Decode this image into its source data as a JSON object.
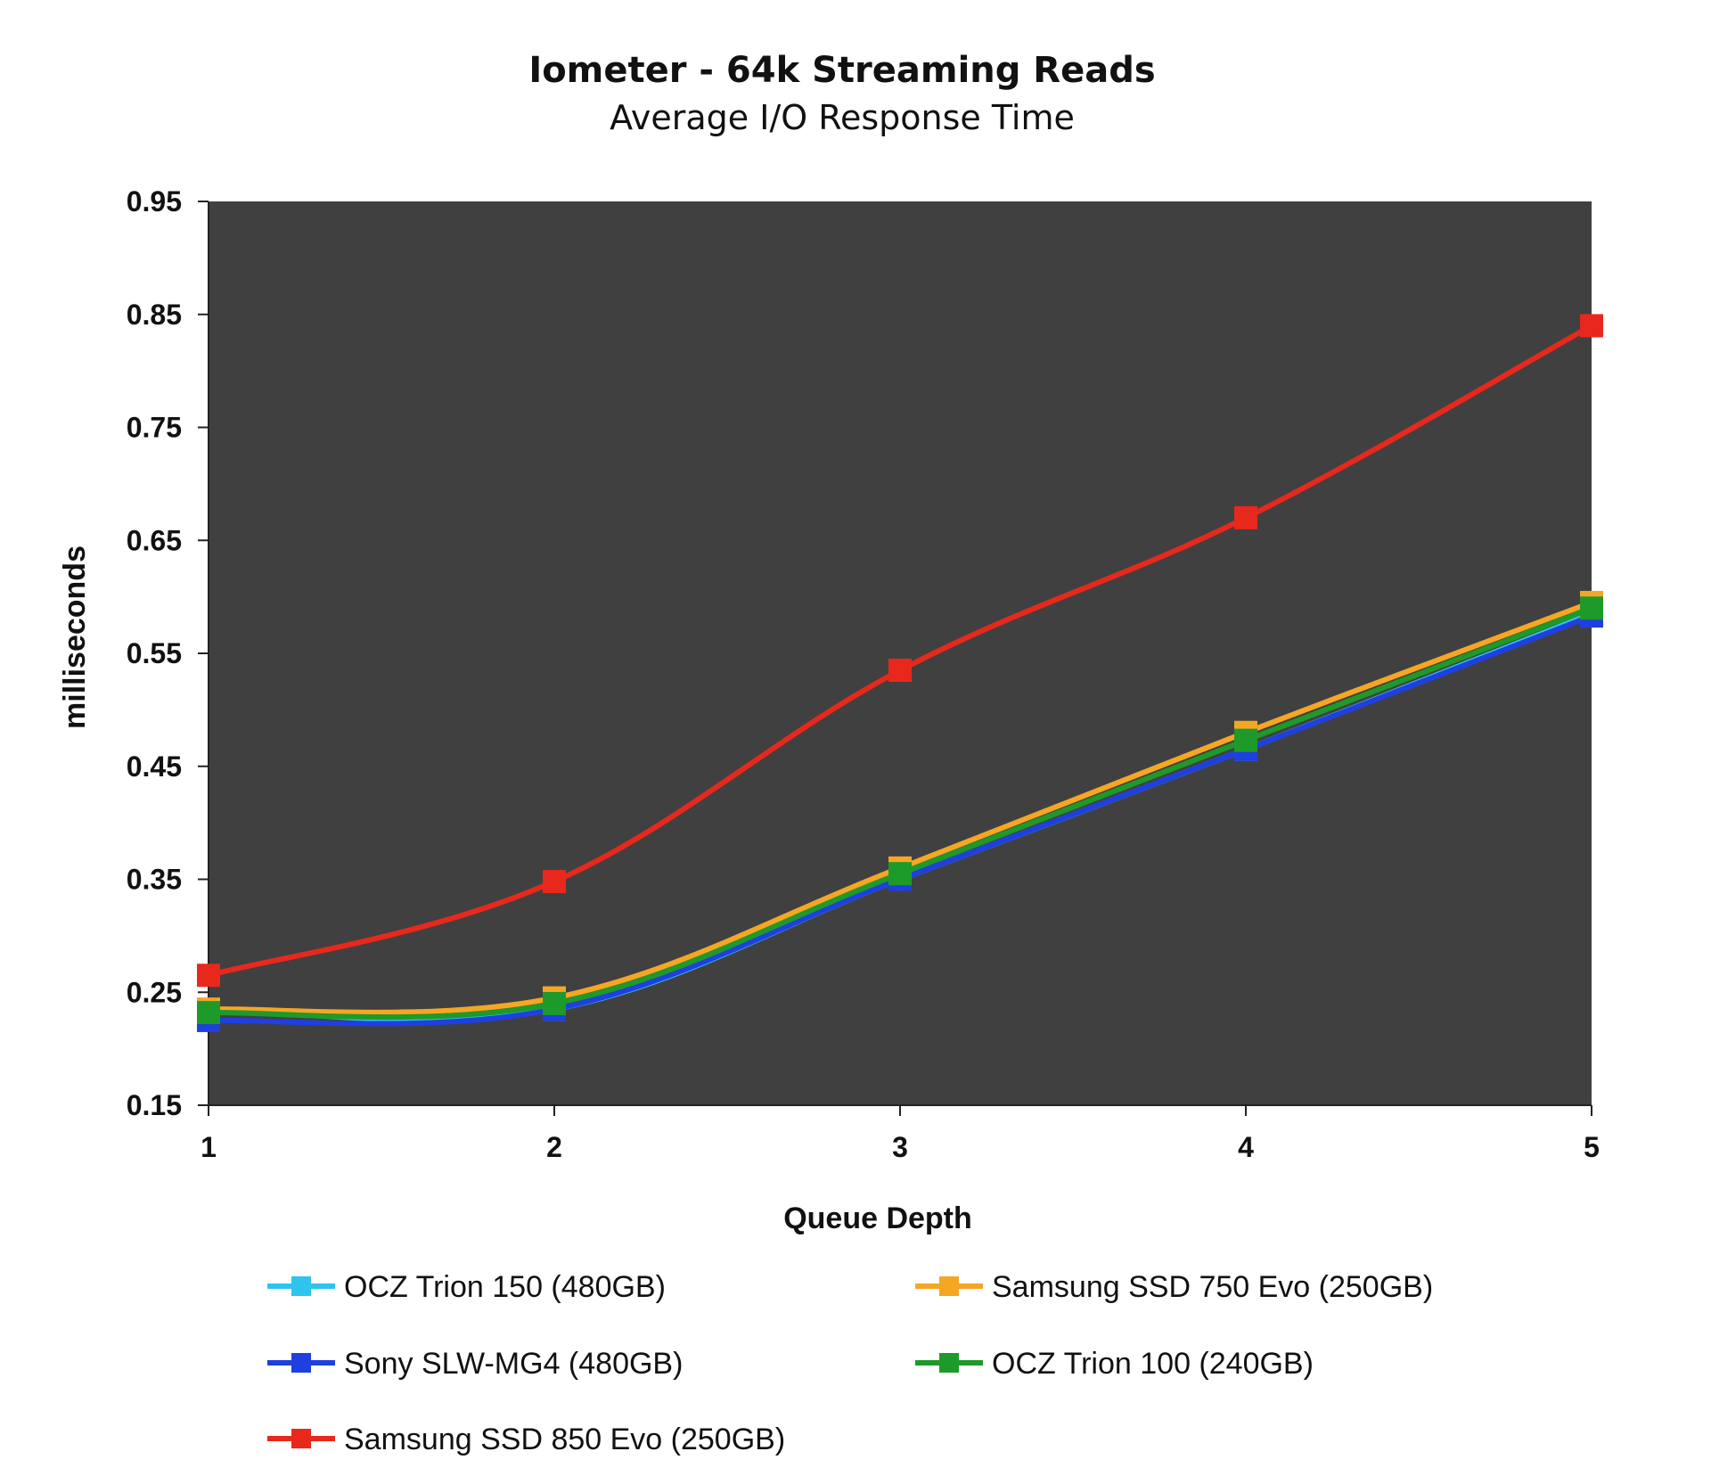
{
  "chart_data": {
    "type": "line",
    "title": "Iometer - 64k Streaming Reads",
    "subtitle": "Average I/O Response Time",
    "xlabel": "Queue Depth",
    "ylabel": "milliseconds",
    "x": [
      1,
      2,
      3,
      4,
      5
    ],
    "x_tick_labels": [
      "1",
      "2",
      "3",
      "4",
      "5"
    ],
    "ylim": [
      0.15,
      0.95
    ],
    "y_ticks": [
      0.15,
      0.25,
      0.35,
      0.45,
      0.55,
      0.65,
      0.75,
      0.85,
      0.95
    ],
    "y_tick_labels": [
      "0.15",
      "0.25",
      "0.35",
      "0.45",
      "0.55",
      "0.65",
      "0.75",
      "0.85",
      "0.95"
    ],
    "plot_background": "#404040",
    "grid": false,
    "legend_position": "bottom",
    "series": [
      {
        "name": "OCZ Trion 150 (480GB)",
        "color": "#2ec4ee",
        "values": [
          0.235,
          0.235,
          0.35,
          0.465,
          0.585
        ]
      },
      {
        "name": "Samsung SSD 750 Evo (250GB)",
        "color": "#f5a623",
        "values": [
          0.235,
          0.245,
          0.36,
          0.48,
          0.595
        ]
      },
      {
        "name": "Sony SLW-MG4 (480GB)",
        "color": "#1f3fe0",
        "values": [
          0.225,
          0.235,
          0.35,
          0.465,
          0.583
        ]
      },
      {
        "name": "OCZ Trion 100 (240GB)",
        "color": "#1d9a2a",
        "values": [
          0.232,
          0.24,
          0.355,
          0.473,
          0.59
        ]
      },
      {
        "name": "Samsung SSD 850 Evo (250GB)",
        "color": "#e8281c",
        "values": [
          0.265,
          0.348,
          0.535,
          0.67,
          0.84
        ]
      }
    ]
  }
}
